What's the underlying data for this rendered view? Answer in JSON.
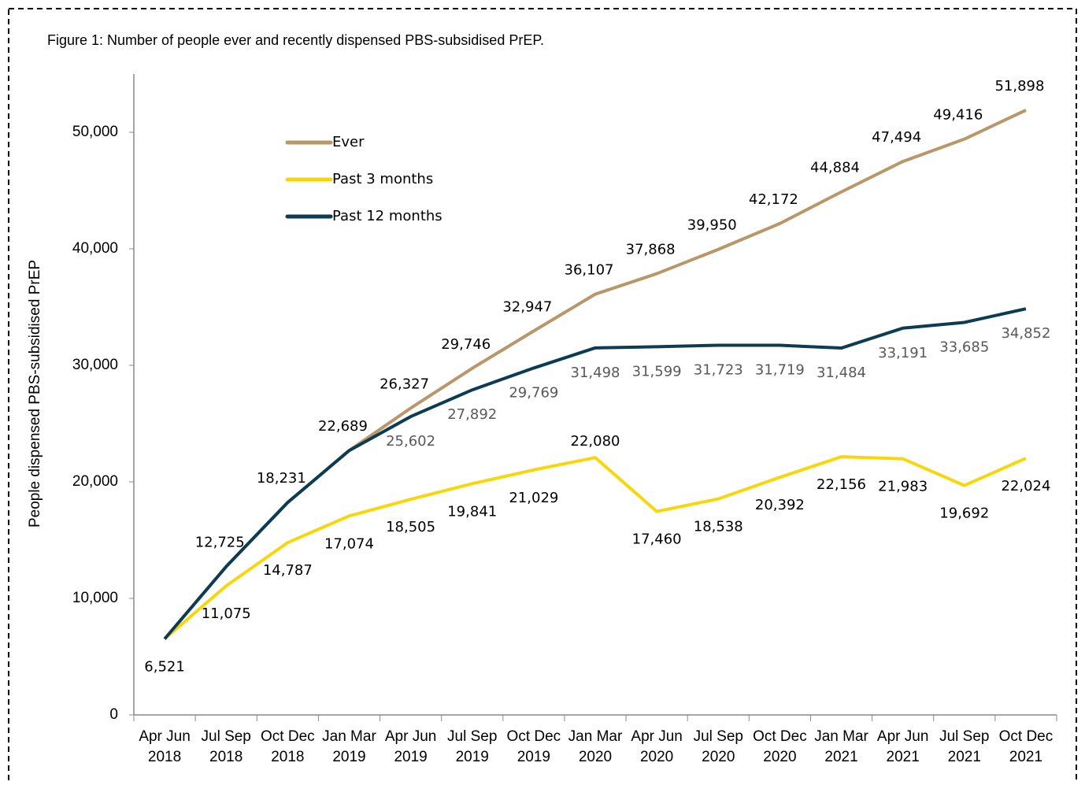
{
  "chart_data": {
    "type": "line",
    "title": "Figure 1: Number of people ever and recently dispensed PBS-subsidised PrEP.",
    "y_label": "People dispensed PBS-subsidised PrEP",
    "categories": [
      [
        "Apr Jun",
        "2018"
      ],
      [
        "Jul Sep",
        "2018"
      ],
      [
        "Oct Dec",
        "2018"
      ],
      [
        "Jan Mar",
        "2019"
      ],
      [
        "Apr Jun",
        "2019"
      ],
      [
        "Jul Sep",
        "2019"
      ],
      [
        "Oct Dec",
        "2019"
      ],
      [
        "Jan Mar",
        "2020"
      ],
      [
        "Apr Jun",
        "2020"
      ],
      [
        "Jul Sep",
        "2020"
      ],
      [
        "Oct Dec",
        "2020"
      ],
      [
        "Jan Mar",
        "2021"
      ],
      [
        "Apr Jun",
        "2021"
      ],
      [
        "Jul Sep",
        "2021"
      ],
      [
        "Oct Dec",
        "2021"
      ]
    ],
    "ylim": [
      0,
      55000
    ],
    "yticks": [
      0,
      {
        "value": 10000,
        "label": "10,000"
      },
      {
        "value": 20000,
        "label": "20,000"
      },
      {
        "value": 30000,
        "label": "30,000"
      },
      {
        "value": 40000,
        "label": "40,000"
      },
      {
        "value": 50000,
        "label": "50,000"
      }
    ],
    "series": [
      {
        "name": "Ever",
        "color": "#b8976a",
        "label_color": "#000000",
        "values": [
          6521,
          12725,
          18231,
          22689,
          26327,
          29746,
          32947,
          36107,
          37868,
          39950,
          42172,
          44884,
          47494,
          49416,
          51898
        ],
        "value_labels": [
          "6,521",
          "12,725",
          "18,231",
          "22,689",
          "26,327",
          "29,746",
          "32,947",
          "36,107",
          "37,868",
          "39,950",
          "42,172",
          "44,884",
          "47,494",
          "49,416",
          "51,898"
        ]
      },
      {
        "name": "Past 3 months",
        "color": "#f7d70c",
        "label_color": "#000000",
        "values": [
          6521,
          11075,
          14787,
          17074,
          18505,
          19841,
          21029,
          22080,
          17460,
          18538,
          20392,
          22156,
          21983,
          19692,
          22024
        ],
        "value_labels": [
          null,
          "11,075",
          "14,787",
          "17,074",
          "18,505",
          "19,841",
          "21,029",
          "22,080",
          "17,460",
          "18,538",
          "20,392",
          "22,156",
          "21,983",
          "19,692",
          "22,024"
        ]
      },
      {
        "name": "Past 12 months",
        "color": "#0d3b52",
        "label_color": "#595959",
        "values": [
          6521,
          12725,
          18231,
          22689,
          25602,
          27892,
          29769,
          31498,
          31599,
          31723,
          31719,
          31484,
          33191,
          33685,
          34852
        ],
        "value_labels": [
          null,
          null,
          null,
          null,
          "25,602",
          "27,892",
          "29,769",
          "31,498",
          "31,599",
          "31,723",
          "31,719",
          "31,484",
          "33,191",
          "33,685",
          "34,852"
        ]
      }
    ]
  }
}
